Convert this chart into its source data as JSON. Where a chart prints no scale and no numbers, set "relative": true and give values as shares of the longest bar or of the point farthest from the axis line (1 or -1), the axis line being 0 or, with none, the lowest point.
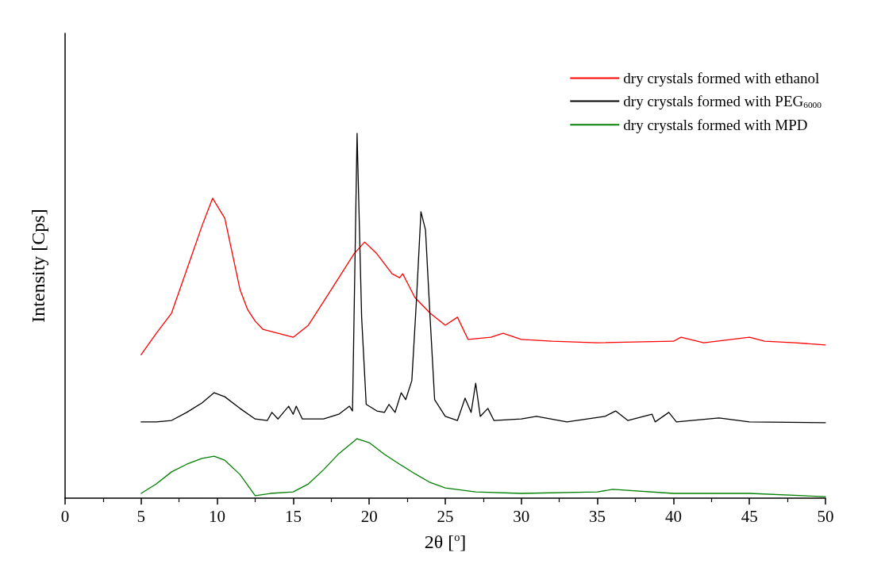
{
  "chart_data": {
    "type": "line",
    "relative": true,
    "xlabel": "2θ [$^{o}$]",
    "ylabel": "Intensity [Cps]",
    "xlim": [
      0,
      50
    ],
    "xticks": [
      0,
      5,
      10,
      15,
      20,
      25,
      30,
      35,
      40,
      45,
      50
    ],
    "grid": false,
    "legend": "top right",
    "marker": "none",
    "line_style": "solid",
    "series": [
      {
        "name": "dry crystals formed with ethanol",
        "color": "#ff0000",
        "x": [
          5,
          6,
          7,
          8,
          9,
          9.7,
          10.5,
          11,
          11.5,
          12,
          12.5,
          13,
          14,
          15,
          16,
          17,
          18,
          19,
          19.7,
          20.5,
          21.5,
          22,
          22.2,
          23,
          24,
          25,
          25.8,
          26.5,
          28,
          28.8,
          30,
          32,
          35,
          40,
          40.5,
          42,
          45,
          46,
          48,
          50
        ],
        "values": [
          0.393,
          0.452,
          0.507,
          0.626,
          0.746,
          0.822,
          0.767,
          0.67,
          0.572,
          0.517,
          0.485,
          0.463,
          0.452,
          0.441,
          0.474,
          0.539,
          0.604,
          0.67,
          0.702,
          0.67,
          0.615,
          0.604,
          0.615,
          0.55,
          0.507,
          0.474,
          0.496,
          0.435,
          0.441,
          0.452,
          0.435,
          0.43,
          0.426,
          0.43,
          0.441,
          0.426,
          0.441,
          0.43,
          0.426,
          0.42
        ]
      },
      {
        "name": "dry crystals formed with PEG$_{6000}$",
        "color": "#000000",
        "x": [
          5,
          6,
          7,
          8,
          9,
          9.8,
          10.5,
          11.5,
          12.5,
          13.3,
          13.6,
          14,
          14.7,
          15,
          15.2,
          15.6,
          17,
          18,
          18.7,
          18.9,
          19.2,
          19.5,
          19.8,
          20.5,
          21,
          21.3,
          21.7,
          22.1,
          22.4,
          22.8,
          23.1,
          23.4,
          23.7,
          24,
          24.3,
          25,
          25.8,
          26.3,
          26.7,
          27,
          27.3,
          27.8,
          28.2,
          30,
          31,
          33,
          35.5,
          36.2,
          37,
          38.6,
          38.8,
          39.7,
          40.2,
          43,
          45,
          50
        ],
        "values": [
          0.209,
          0.209,
          0.213,
          0.235,
          0.261,
          0.289,
          0.278,
          0.246,
          0.217,
          0.213,
          0.235,
          0.217,
          0.252,
          0.23,
          0.252,
          0.217,
          0.217,
          0.23,
          0.252,
          0.239,
          1,
          0.496,
          0.257,
          0.239,
          0.235,
          0.257,
          0.235,
          0.289,
          0.27,
          0.322,
          0.539,
          0.785,
          0.735,
          0.496,
          0.27,
          0.224,
          0.213,
          0.274,
          0.235,
          0.315,
          0.224,
          0.246,
          0.213,
          0.217,
          0.224,
          0.209,
          0.224,
          0.239,
          0.213,
          0.23,
          0.209,
          0.235,
          0.209,
          0.22,
          0.209,
          0.207
        ]
      },
      {
        "name": "dry crystals formed with MPD",
        "color": "#008000",
        "x": [
          5,
          6,
          7,
          8,
          9,
          9.8,
          10.5,
          11.5,
          12.5,
          13.5,
          15,
          16,
          17,
          18,
          19.2,
          20,
          21,
          22,
          23,
          24,
          25,
          27,
          30,
          35,
          36,
          40,
          45,
          50
        ],
        "values": [
          0.013,
          0.039,
          0.072,
          0.093,
          0.109,
          0.115,
          0.104,
          0.065,
          0.007,
          0.013,
          0.017,
          0.039,
          0.078,
          0.122,
          0.163,
          0.152,
          0.12,
          0.093,
          0.067,
          0.043,
          0.028,
          0.017,
          0.013,
          0.017,
          0.024,
          0.013,
          0.013,
          0.004
        ]
      }
    ]
  }
}
